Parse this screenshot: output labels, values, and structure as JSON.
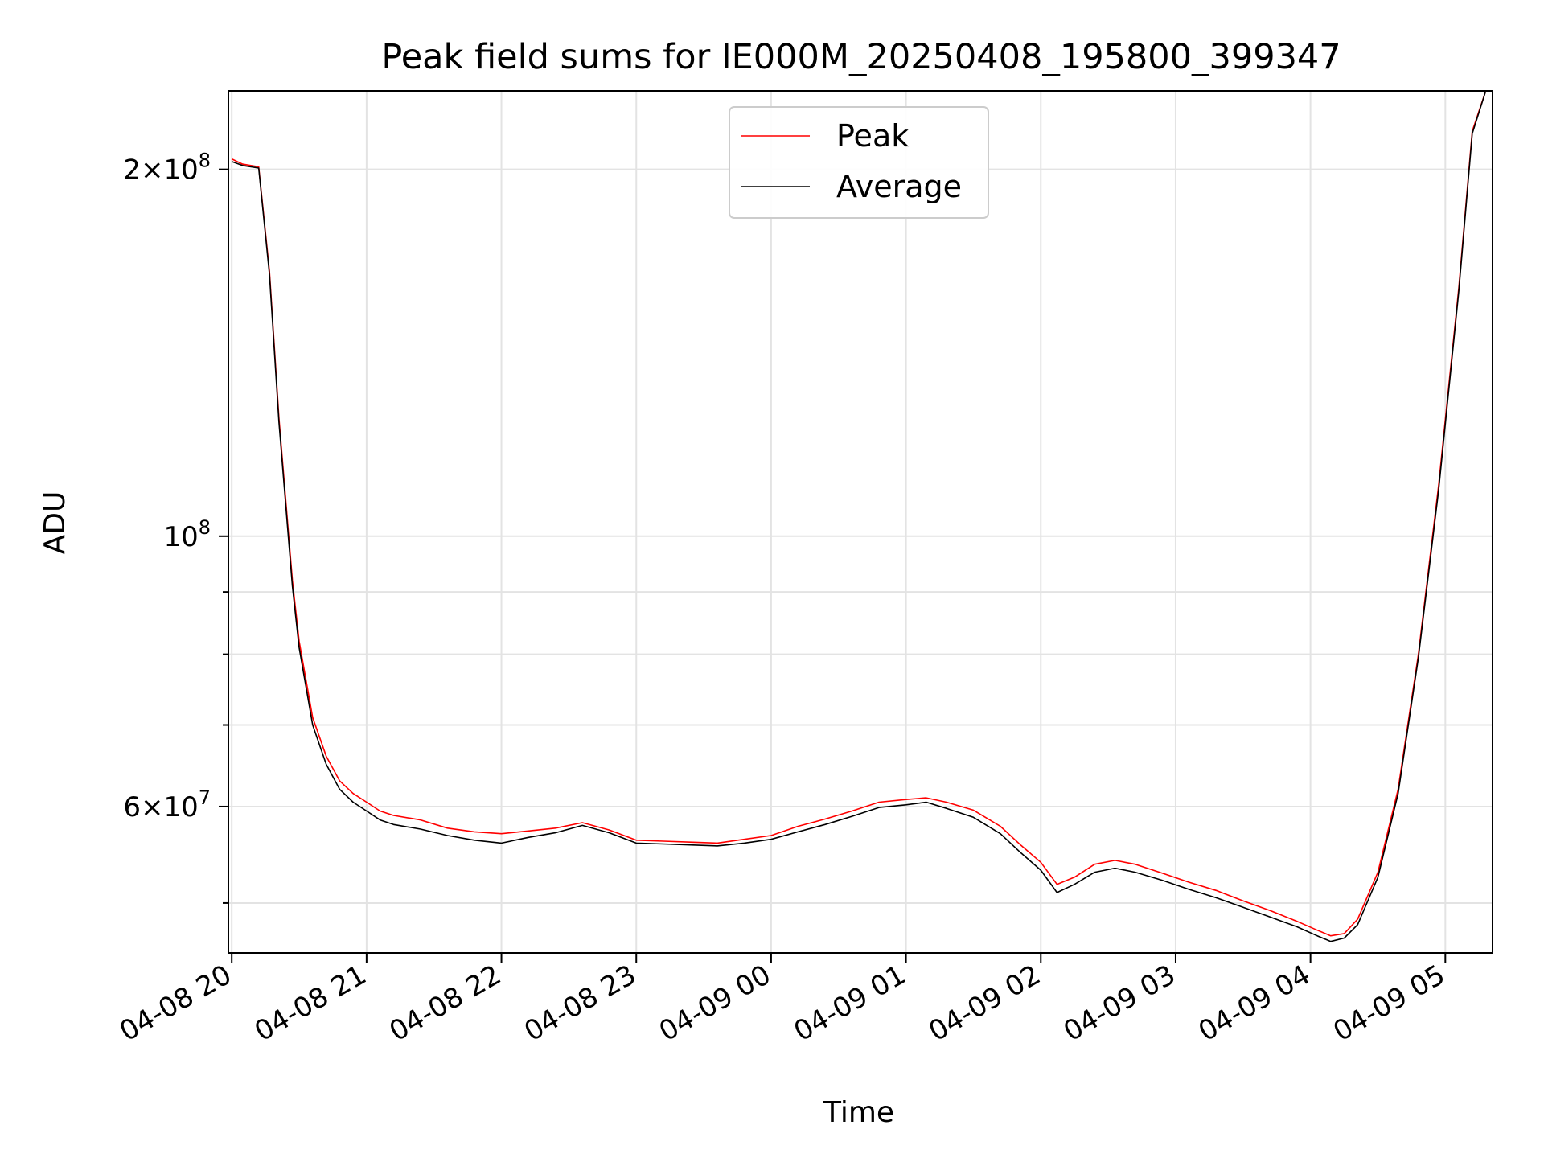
{
  "chart_data": {
    "type": "line",
    "title": "Peak field sums for IE000M_20250408_195800_399347",
    "xlabel": "Time",
    "ylabel": "ADU",
    "yscale": "log",
    "ylim": [
      45500000,
      232000000
    ],
    "xlim": [
      -0.025,
      9.35
    ],
    "grid": true,
    "legend_position": "upper-center",
    "x_ticks": [
      {
        "value": 0,
        "label": "04-08 20"
      },
      {
        "value": 1,
        "label": "04-08 21"
      },
      {
        "value": 2,
        "label": "04-08 22"
      },
      {
        "value": 3,
        "label": "04-08 23"
      },
      {
        "value": 4,
        "label": "04-09 00"
      },
      {
        "value": 5,
        "label": "04-09 01"
      },
      {
        "value": 6,
        "label": "04-09 02"
      },
      {
        "value": 7,
        "label": "04-09 03"
      },
      {
        "value": 8,
        "label": "04-09 04"
      },
      {
        "value": 9,
        "label": "04-09 05"
      }
    ],
    "y_major_ticks": [
      {
        "value": 60000000,
        "mantissa": "6",
        "exponent": "7"
      },
      {
        "value": 100000000,
        "mantissa": "",
        "exponent": "8"
      },
      {
        "value": 200000000,
        "mantissa": "2",
        "exponent": "8"
      }
    ],
    "y_minor_ticks": [
      50000000,
      70000000,
      80000000,
      90000000
    ],
    "y_tick_base": "10",
    "y_tick_times": "×",
    "series": [
      {
        "name": "Peak",
        "color": "#ff0000",
        "x": [
          0,
          0.08,
          0.2,
          0.28,
          0.35,
          0.45,
          0.5,
          0.6,
          0.7,
          0.8,
          0.9,
          1.0,
          1.1,
          1.2,
          1.4,
          1.6,
          1.8,
          2.0,
          2.2,
          2.4,
          2.6,
          2.8,
          3.0,
          3.2,
          3.4,
          3.6,
          3.8,
          4.0,
          4.2,
          4.4,
          4.6,
          4.8,
          5.0,
          5.15,
          5.3,
          5.5,
          5.7,
          5.85,
          6.0,
          6.12,
          6.25,
          6.4,
          6.55,
          6.7,
          6.9,
          7.1,
          7.3,
          7.5,
          7.7,
          7.9,
          8.05,
          8.15,
          8.25,
          8.35,
          8.5,
          8.65,
          8.8,
          8.95,
          9.1,
          9.2,
          9.3
        ],
        "y": [
          204000000,
          202000000,
          201000000,
          165000000,
          125000000,
          92000000,
          82000000,
          71000000,
          66000000,
          63000000,
          61500000,
          60500000,
          59500000,
          59000000,
          58500000,
          57600000,
          57200000,
          57000000,
          57300000,
          57600000,
          58200000,
          57400000,
          56300000,
          56200000,
          56100000,
          56000000,
          56400000,
          56800000,
          57800000,
          58600000,
          59500000,
          60500000,
          60800000,
          61000000,
          60500000,
          59600000,
          57800000,
          55800000,
          54000000,
          51800000,
          52500000,
          53800000,
          54200000,
          53800000,
          52900000,
          52000000,
          51200000,
          50200000,
          49300000,
          48300000,
          47500000,
          47000000,
          47200000,
          48500000,
          53000000,
          62000000,
          80000000,
          110000000,
          160000000,
          215000000,
          232000000
        ]
      },
      {
        "name": "Average",
        "color": "#000000",
        "x": [
          0,
          0.08,
          0.2,
          0.28,
          0.35,
          0.45,
          0.5,
          0.6,
          0.7,
          0.8,
          0.9,
          1.0,
          1.1,
          1.2,
          1.4,
          1.6,
          1.8,
          2.0,
          2.2,
          2.4,
          2.6,
          2.8,
          3.0,
          3.2,
          3.4,
          3.6,
          3.8,
          4.0,
          4.2,
          4.4,
          4.6,
          4.8,
          5.0,
          5.15,
          5.3,
          5.5,
          5.7,
          5.85,
          6.0,
          6.12,
          6.25,
          6.4,
          6.55,
          6.7,
          6.9,
          7.1,
          7.3,
          7.5,
          7.7,
          7.9,
          8.05,
          8.15,
          8.25,
          8.35,
          8.5,
          8.65,
          8.8,
          8.95,
          9.1,
          9.2,
          9.3
        ],
        "y": [
          203000000,
          201500000,
          200500000,
          164000000,
          124000000,
          91000000,
          81000000,
          70000000,
          65000000,
          62000000,
          60500000,
          59500000,
          58500000,
          58000000,
          57500000,
          56800000,
          56300000,
          56000000,
          56600000,
          57100000,
          57900000,
          57100000,
          56000000,
          55900000,
          55800000,
          55700000,
          56000000,
          56400000,
          57200000,
          58000000,
          58900000,
          59900000,
          60200000,
          60500000,
          59800000,
          58800000,
          57000000,
          55000000,
          53200000,
          51000000,
          51800000,
          53000000,
          53400000,
          53000000,
          52200000,
          51300000,
          50500000,
          49600000,
          48700000,
          47800000,
          47000000,
          46500000,
          46800000,
          48000000,
          52500000,
          61500000,
          79500000,
          109000000,
          159000000,
          214000000,
          232000000
        ]
      }
    ]
  }
}
